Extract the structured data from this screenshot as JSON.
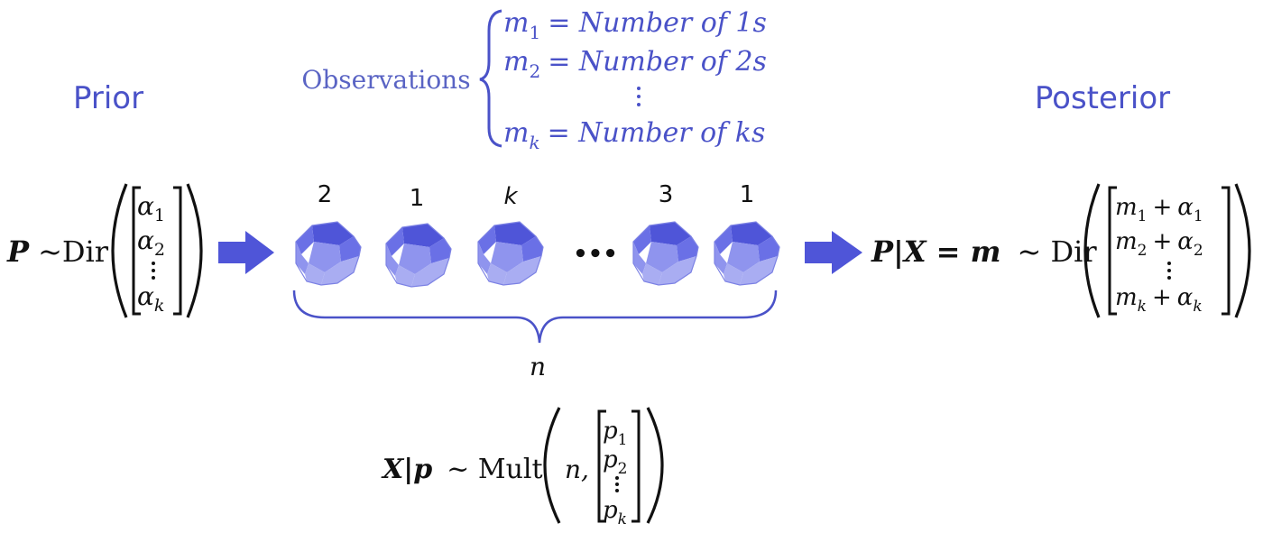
{
  "headings": {
    "prior": "Prior",
    "posterior": "Posterior",
    "observations": "Observations"
  },
  "observations": [
    {
      "var": "m",
      "sub": "1",
      "rhs": "= Number of 1s"
    },
    {
      "var": "m",
      "sub": "2",
      "rhs": "= Number of 2s"
    },
    {
      "var": "m",
      "sub": "k",
      "rhs": "= Number of ks"
    }
  ],
  "prior": {
    "lhs": "P",
    "dist": "~Dir",
    "vector": [
      {
        "var": "α",
        "sub": "1"
      },
      {
        "var": "α",
        "sub": "2"
      },
      {
        "var": "α",
        "sub": "k"
      }
    ]
  },
  "dice": {
    "labels": [
      "2",
      "1",
      "k",
      "3",
      "1"
    ],
    "ellipsis": "•••",
    "count_symbol": "n",
    "color": "#4f55d8"
  },
  "posterior": {
    "lhs": "P|X = m",
    "dist": "~ Dir",
    "vector": [
      {
        "m": "m",
        "msub": "1",
        "plus": "+",
        "a": "α",
        "asub": "1"
      },
      {
        "m": "m",
        "msub": "2",
        "plus": "+",
        "a": "α",
        "asub": "2"
      },
      {
        "m": "m",
        "msub": "k",
        "plus": "+",
        "a": "α",
        "asub": "k"
      }
    ]
  },
  "likelihood": {
    "lhs": "X|p",
    "dist": "~ Mult",
    "first_arg": "n,",
    "vector": [
      {
        "var": "p",
        "sub": "1"
      },
      {
        "var": "p",
        "sub": "2"
      },
      {
        "var": "p",
        "sub": "k"
      }
    ]
  },
  "colors": {
    "accent": "#4a52c8",
    "arrow": "#4f55d8",
    "ink": "#111111"
  }
}
